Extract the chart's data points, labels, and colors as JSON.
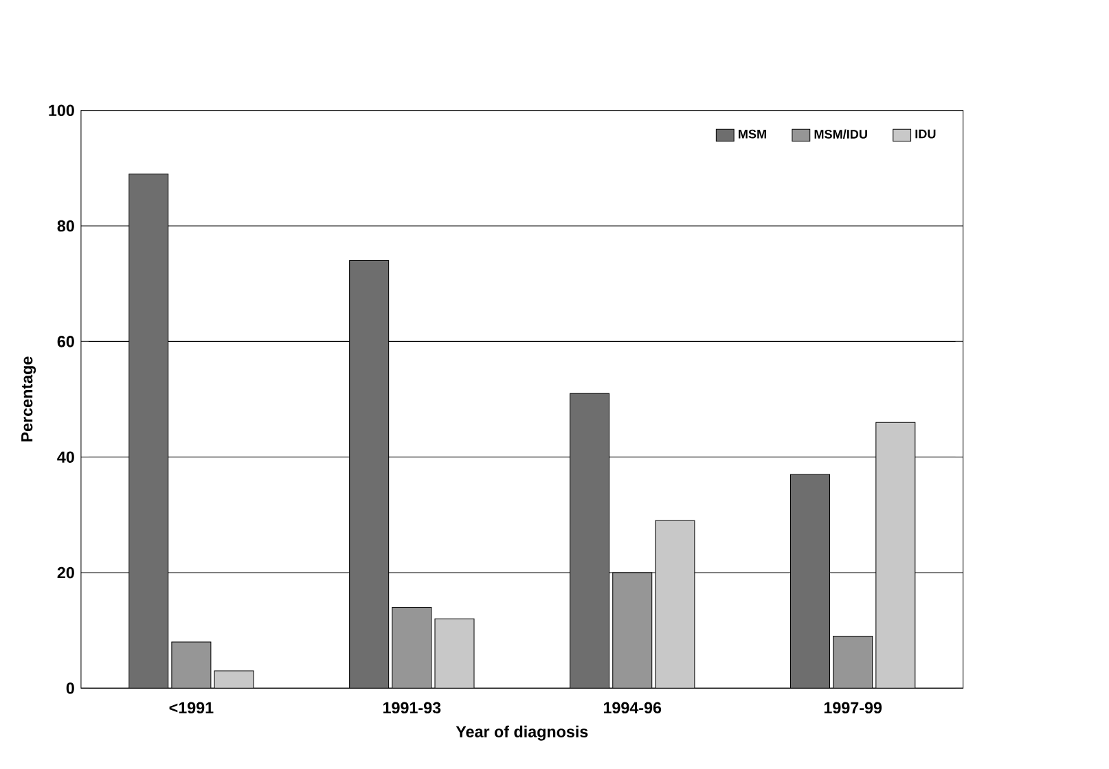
{
  "chart_data": {
    "type": "bar",
    "xlabel": "Year of diagnosis",
    "ylabel": "Percentage",
    "categories": [
      "<1991",
      "1991-93",
      "1994-96",
      "1997-99"
    ],
    "series": [
      {
        "name": "MSM",
        "color": "#6e6e6e",
        "values": [
          89,
          74,
          51,
          37
        ]
      },
      {
        "name": "MSM/IDU",
        "color": "#969696",
        "values": [
          8,
          14,
          20,
          9
        ]
      },
      {
        "name": "IDU",
        "color": "#c8c8c8",
        "values": [
          3,
          12,
          29,
          46
        ]
      }
    ],
    "ylim": [
      0,
      100
    ],
    "yticks": [
      0,
      20,
      40,
      60,
      80,
      100
    ],
    "grid": "y",
    "legend": "top right"
  }
}
